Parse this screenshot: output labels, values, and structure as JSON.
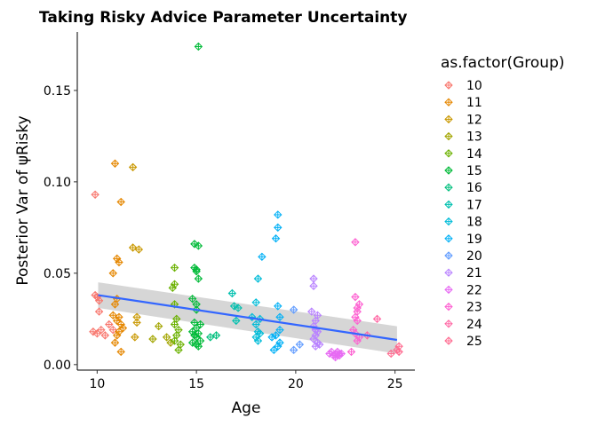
{
  "chart_data": {
    "type": "scatter",
    "title": "Taking Risky Advice Parameter Uncertainty",
    "xlabel": "Age",
    "ylabel": "Posterior Var of ψRisky",
    "xlim": [
      9.0,
      26.0
    ],
    "ylim": [
      -0.003,
      0.182
    ],
    "x_ticks": [
      10,
      15,
      20,
      25
    ],
    "y_ticks": [
      0.0,
      0.05,
      0.1,
      0.15
    ],
    "y_tick_labels": [
      "0.00",
      "0.05",
      "0.10",
      "0.15"
    ],
    "grid": false,
    "legend": {
      "title": "as.factor(Group)",
      "placement": "right"
    },
    "trend": {
      "method": "lm",
      "x": [
        10.05,
        25.1
      ],
      "y": [
        0.038,
        0.0135
      ],
      "se_lower": [
        0.031,
        0.006
      ],
      "se_upper": [
        0.045,
        0.021
      ],
      "color": "#3366FF"
    },
    "series": [
      {
        "name": "10",
        "color": "#F8766D",
        "points": [
          [
            9.9,
            0.093
          ],
          [
            9.9,
            0.038
          ],
          [
            10.0,
            0.037
          ],
          [
            10.1,
            0.035
          ],
          [
            10.1,
            0.029
          ],
          [
            10.2,
            0.019
          ],
          [
            9.8,
            0.018
          ],
          [
            10.0,
            0.017
          ],
          [
            10.6,
            0.022
          ],
          [
            10.8,
            0.019
          ],
          [
            10.4,
            0.016
          ]
        ]
      },
      {
        "name": "11",
        "color": "#E58700",
        "points": [
          [
            10.9,
            0.11
          ],
          [
            11.2,
            0.089
          ],
          [
            11.0,
            0.058
          ],
          [
            11.1,
            0.056
          ],
          [
            10.8,
            0.05
          ],
          [
            11.0,
            0.036
          ],
          [
            10.9,
            0.033
          ],
          [
            10.8,
            0.027
          ],
          [
            11.1,
            0.026
          ],
          [
            11.0,
            0.024
          ],
          [
            11.2,
            0.022
          ],
          [
            11.3,
            0.02
          ],
          [
            11.1,
            0.018
          ],
          [
            11.0,
            0.016
          ],
          [
            10.9,
            0.012
          ],
          [
            11.2,
            0.007
          ]
        ]
      },
      {
        "name": "12",
        "color": "#C99800",
        "points": [
          [
            11.8,
            0.108
          ],
          [
            11.8,
            0.064
          ],
          [
            12.1,
            0.063
          ],
          [
            12.0,
            0.026
          ],
          [
            12.0,
            0.023
          ],
          [
            11.9,
            0.015
          ]
        ]
      },
      {
        "name": "13",
        "color": "#A3A500",
        "points": [
          [
            12.8,
            0.014
          ],
          [
            13.1,
            0.021
          ],
          [
            13.5,
            0.015
          ],
          [
            13.7,
            0.012
          ]
        ]
      },
      {
        "name": "14",
        "color": "#6BB100",
        "points": [
          [
            13.9,
            0.053
          ],
          [
            13.9,
            0.044
          ],
          [
            13.8,
            0.042
          ],
          [
            13.9,
            0.033
          ],
          [
            14.0,
            0.025
          ],
          [
            13.9,
            0.022
          ],
          [
            14.1,
            0.019
          ],
          [
            14.0,
            0.016
          ],
          [
            13.9,
            0.013
          ],
          [
            14.2,
            0.011
          ],
          [
            14.1,
            0.008
          ]
        ]
      },
      {
        "name": "15",
        "color": "#00BA38",
        "points": [
          [
            15.1,
            0.174
          ],
          [
            14.9,
            0.066
          ],
          [
            15.1,
            0.065
          ],
          [
            14.9,
            0.053
          ],
          [
            15.0,
            0.052
          ],
          [
            15.0,
            0.051
          ],
          [
            15.1,
            0.047
          ],
          [
            14.8,
            0.036
          ],
          [
            15.0,
            0.033
          ],
          [
            15.0,
            0.03
          ],
          [
            14.9,
            0.023
          ],
          [
            15.2,
            0.022
          ],
          [
            15.0,
            0.02
          ],
          [
            14.8,
            0.018
          ],
          [
            15.1,
            0.017
          ],
          [
            14.9,
            0.016
          ],
          [
            15.0,
            0.015
          ],
          [
            15.2,
            0.013
          ],
          [
            14.8,
            0.012
          ],
          [
            15.0,
            0.011
          ],
          [
            15.1,
            0.01
          ]
        ]
      },
      {
        "name": "16",
        "color": "#00BF7D",
        "points": [
          [
            15.7,
            0.015
          ],
          [
            16.0,
            0.016
          ]
        ]
      },
      {
        "name": "17",
        "color": "#00C0AF",
        "points": [
          [
            16.8,
            0.039
          ],
          [
            16.9,
            0.032
          ],
          [
            17.1,
            0.031
          ],
          [
            17.0,
            0.024
          ]
        ]
      },
      {
        "name": "18",
        "color": "#00BCD8",
        "points": [
          [
            18.1,
            0.047
          ],
          [
            18.0,
            0.034
          ],
          [
            17.8,
            0.026
          ],
          [
            18.2,
            0.025
          ],
          [
            18.0,
            0.022
          ],
          [
            18.1,
            0.018
          ],
          [
            18.2,
            0.017
          ],
          [
            18.0,
            0.015
          ],
          [
            18.1,
            0.013
          ]
        ]
      },
      {
        "name": "19",
        "color": "#00B0F6",
        "points": [
          [
            19.1,
            0.082
          ],
          [
            19.1,
            0.075
          ],
          [
            19.0,
            0.069
          ],
          [
            18.3,
            0.059
          ],
          [
            19.1,
            0.032
          ],
          [
            19.2,
            0.026
          ],
          [
            19.2,
            0.019
          ],
          [
            19.0,
            0.016
          ],
          [
            18.8,
            0.015
          ],
          [
            19.2,
            0.012
          ],
          [
            19.1,
            0.01
          ],
          [
            18.9,
            0.008
          ]
        ]
      },
      {
        "name": "20",
        "color": "#619CFF",
        "points": [
          [
            19.9,
            0.03
          ],
          [
            20.2,
            0.011
          ],
          [
            19.9,
            0.008
          ]
        ]
      },
      {
        "name": "21",
        "color": "#B983FF",
        "points": [
          [
            20.9,
            0.047
          ],
          [
            20.9,
            0.043
          ],
          [
            20.8,
            0.029
          ],
          [
            21.1,
            0.027
          ],
          [
            21.0,
            0.024
          ],
          [
            20.9,
            0.021
          ],
          [
            21.0,
            0.019
          ],
          [
            21.1,
            0.018
          ],
          [
            21.0,
            0.016
          ],
          [
            20.9,
            0.014
          ],
          [
            21.1,
            0.012
          ],
          [
            21.2,
            0.011
          ],
          [
            21.0,
            0.01
          ]
        ]
      },
      {
        "name": "22",
        "color": "#E76BF3",
        "points": [
          [
            21.8,
            0.007
          ],
          [
            22.0,
            0.006
          ],
          [
            22.1,
            0.007
          ],
          [
            22.2,
            0.006
          ],
          [
            21.9,
            0.005
          ],
          [
            22.1,
            0.005
          ],
          [
            22.3,
            0.006
          ],
          [
            22.0,
            0.004
          ],
          [
            22.2,
            0.005
          ],
          [
            21.7,
            0.006
          ]
        ]
      },
      {
        "name": "23",
        "color": "#FD61D1",
        "points": [
          [
            23.0,
            0.067
          ],
          [
            23.0,
            0.037
          ],
          [
            23.2,
            0.033
          ],
          [
            23.1,
            0.031
          ],
          [
            23.1,
            0.029
          ],
          [
            23.0,
            0.026
          ],
          [
            23.1,
            0.024
          ],
          [
            22.9,
            0.019
          ],
          [
            23.0,
            0.017
          ],
          [
            23.2,
            0.015
          ],
          [
            23.1,
            0.013
          ],
          [
            22.8,
            0.007
          ]
        ]
      },
      {
        "name": "24",
        "color": "#FF67A4",
        "points": [
          [
            24.1,
            0.025
          ],
          [
            23.6,
            0.016
          ]
        ]
      },
      {
        "name": "25",
        "color": "#FF6C91",
        "points": [
          [
            24.8,
            0.006
          ],
          [
            25.1,
            0.008
          ],
          [
            25.2,
            0.01
          ],
          [
            25.2,
            0.007
          ]
        ]
      }
    ]
  }
}
